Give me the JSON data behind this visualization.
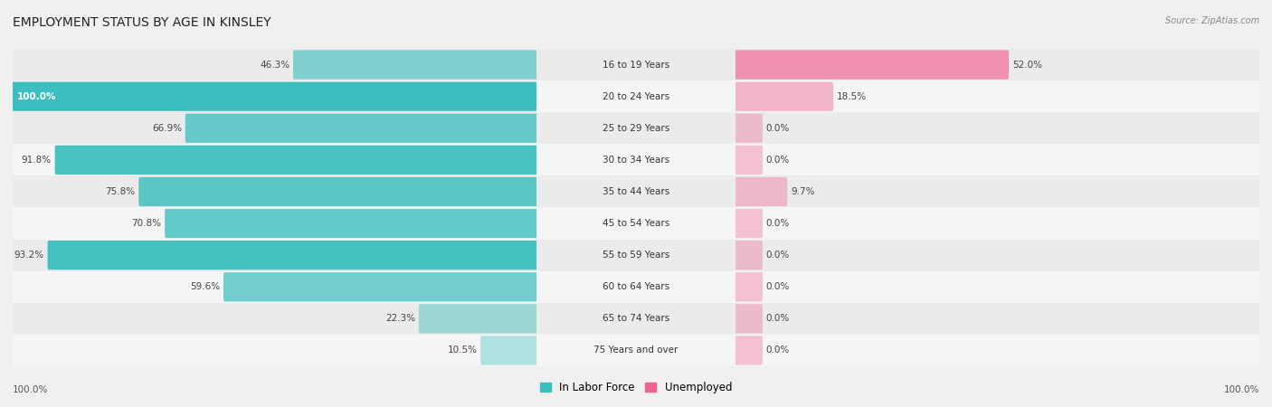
{
  "title": "EMPLOYMENT STATUS BY AGE IN KINSLEY",
  "source": "Source: ZipAtlas.com",
  "categories": [
    "16 to 19 Years",
    "20 to 24 Years",
    "25 to 29 Years",
    "30 to 34 Years",
    "35 to 44 Years",
    "45 to 54 Years",
    "55 to 59 Years",
    "60 to 64 Years",
    "65 to 74 Years",
    "75 Years and over"
  ],
  "labor_force": [
    46.3,
    100.0,
    66.9,
    91.8,
    75.8,
    70.8,
    93.2,
    59.6,
    22.3,
    10.5
  ],
  "unemployed": [
    52.0,
    18.5,
    0.0,
    0.0,
    9.7,
    0.0,
    0.0,
    0.0,
    0.0,
    0.0
  ],
  "unemployed_min_display": 5.0,
  "labor_color": "#3ebfbf",
  "labor_color_light": "#a8dede",
  "unemployed_color": "#f06292",
  "unemployed_color_light": "#f8bbd0",
  "bg_color": "#f0f0f0",
  "row_colors": [
    "#ebebeb",
    "#f5f5f5"
  ],
  "title_fontsize": 10,
  "bar_label_fontsize": 7.5,
  "cat_label_fontsize": 7.5,
  "legend_fontsize": 8.5,
  "source_fontsize": 7
}
